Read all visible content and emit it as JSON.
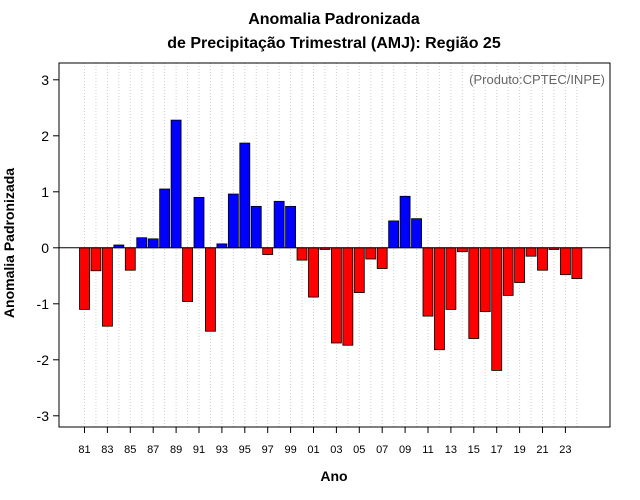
{
  "chart_data": {
    "type": "bar",
    "title_line1": "Anomalia Padronizada",
    "title_line2": "de Precipitação Trimestral (AMJ): Região 25",
    "credit": "(Produto:CPTEC/INPE)",
    "xlabel": "Ano",
    "ylabel": "Anomalia Padronizada",
    "ylim": [
      -3.2,
      3.3
    ],
    "yticks": [
      3,
      2,
      1,
      0,
      -1,
      -2,
      -3
    ],
    "ytick_labels": [
      "3",
      "2",
      "1",
      "0",
      "-1",
      "-2",
      "-3"
    ],
    "grid": "vertical-dotted",
    "colors": {
      "positive": "#0000ff",
      "negative": "#ff0000",
      "grid": "#cfcfcf",
      "zero_line": "#000000"
    },
    "categories": [
      "81",
      "82",
      "83",
      "84",
      "85",
      "86",
      "87",
      "88",
      "89",
      "90",
      "91",
      "92",
      "93",
      "94",
      "95",
      "96",
      "97",
      "98",
      "99",
      "00",
      "01",
      "02",
      "03",
      "04",
      "05",
      "06",
      "07",
      "08",
      "09",
      "10",
      "11",
      "12",
      "13",
      "14",
      "15",
      "16",
      "17",
      "18",
      "19",
      "20",
      "21",
      "22",
      "23",
      "24"
    ],
    "x_tick_labels": [
      "81",
      "83",
      "85",
      "87",
      "89",
      "91",
      "93",
      "95",
      "97",
      "99",
      "01",
      "03",
      "05",
      "07",
      "09",
      "11",
      "13",
      "15",
      "17",
      "19",
      "21",
      "23"
    ],
    "values": [
      -1.1,
      -0.41,
      -1.4,
      0.05,
      -0.4,
      0.18,
      0.16,
      1.05,
      2.28,
      -0.96,
      0.9,
      -1.49,
      0.07,
      0.96,
      1.87,
      0.74,
      -0.12,
      0.83,
      0.74,
      -0.22,
      -0.88,
      -0.03,
      -1.7,
      -1.74,
      -0.8,
      -0.2,
      -0.37,
      0.48,
      0.92,
      0.52,
      -1.22,
      -1.82,
      -1.1,
      -0.07,
      -1.62,
      -1.14,
      -2.19,
      -0.85,
      -0.62,
      -0.15,
      -0.4,
      -0.03,
      -0.48,
      -0.55
    ]
  }
}
